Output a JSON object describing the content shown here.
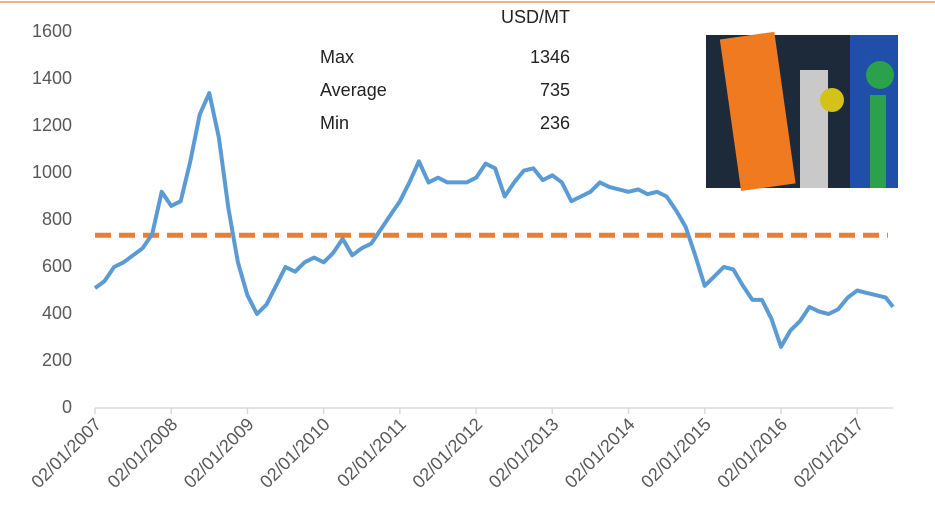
{
  "chart_data": {
    "type": "line",
    "x": [
      2007.0,
      2007.125,
      2007.25,
      2007.375,
      2007.5,
      2007.625,
      2007.75,
      2007.875,
      2008.0,
      2008.125,
      2008.25,
      2008.375,
      2008.5,
      2008.625,
      2008.75,
      2008.875,
      2009.0,
      2009.125,
      2009.25,
      2009.375,
      2009.5,
      2009.625,
      2009.75,
      2009.875,
      2010.0,
      2010.125,
      2010.25,
      2010.375,
      2010.5,
      2010.625,
      2010.75,
      2010.875,
      2011.0,
      2011.125,
      2011.25,
      2011.375,
      2011.5,
      2011.625,
      2011.75,
      2011.875,
      2012.0,
      2012.125,
      2012.25,
      2012.375,
      2012.5,
      2012.625,
      2012.75,
      2012.875,
      2013.0,
      2013.125,
      2013.25,
      2013.375,
      2013.5,
      2013.625,
      2013.75,
      2013.875,
      2014.0,
      2014.125,
      2014.25,
      2014.375,
      2014.5,
      2014.625,
      2014.75,
      2014.875,
      2015.0,
      2015.125,
      2015.25,
      2015.375,
      2015.5,
      2015.625,
      2015.75,
      2015.875,
      2016.0,
      2016.125,
      2016.25,
      2016.375,
      2016.5,
      2016.625,
      2016.75,
      2016.875,
      2017.0,
      2017.125,
      2017.25,
      2017.375,
      2017.47
    ],
    "series": [
      {
        "color": "#5b9bd5",
        "values": [
          510,
          540,
          600,
          620,
          650,
          680,
          740,
          920,
          860,
          880,
          1050,
          1250,
          1340,
          1150,
          850,
          620,
          480,
          400,
          440,
          520,
          600,
          580,
          620,
          640,
          620,
          660,
          720,
          650,
          680,
          700,
          760,
          820,
          880,
          960,
          1050,
          960,
          980,
          960,
          960,
          960,
          980,
          1040,
          1020,
          900,
          960,
          1010,
          1020,
          970,
          990,
          960,
          880,
          900,
          920,
          960,
          940,
          930,
          920,
          930,
          910,
          920,
          900,
          840,
          770,
          650,
          520,
          560,
          600,
          590,
          520,
          460,
          460,
          380,
          260,
          330,
          370,
          430,
          410,
          400,
          420,
          470,
          500,
          490,
          480,
          470,
          430
        ]
      }
    ],
    "average_line_color": "#ed7d31",
    "xlim": [
      2007,
      2017.47
    ],
    "xticks": [
      {
        "value": 2007,
        "label": "02/01/2007"
      },
      {
        "value": 2008,
        "label": "02/01/2008"
      },
      {
        "value": 2009,
        "label": "02/01/2009"
      },
      {
        "value": 2010,
        "label": "02/01/2010"
      },
      {
        "value": 2011,
        "label": "02/01/2011"
      },
      {
        "value": 2012,
        "label": "02/01/2012"
      },
      {
        "value": 2013,
        "label": "02/01/2013"
      },
      {
        "value": 2014,
        "label": "02/01/2014"
      },
      {
        "value": 2015,
        "label": "02/01/2015"
      },
      {
        "value": 2016,
        "label": "02/01/2016"
      },
      {
        "value": 2017,
        "label": "02/01/2017"
      }
    ],
    "ylim": [
      0,
      1600
    ],
    "yticks": [
      0,
      200,
      400,
      600,
      800,
      1000,
      1200,
      1400,
      1600
    ],
    "stats_unit": "USD/MT",
    "stats": [
      {
        "label": "Max",
        "value": 1346
      },
      {
        "label": "Average",
        "value": 735
      },
      {
        "label": "Min",
        "value": 236
      }
    ]
  }
}
